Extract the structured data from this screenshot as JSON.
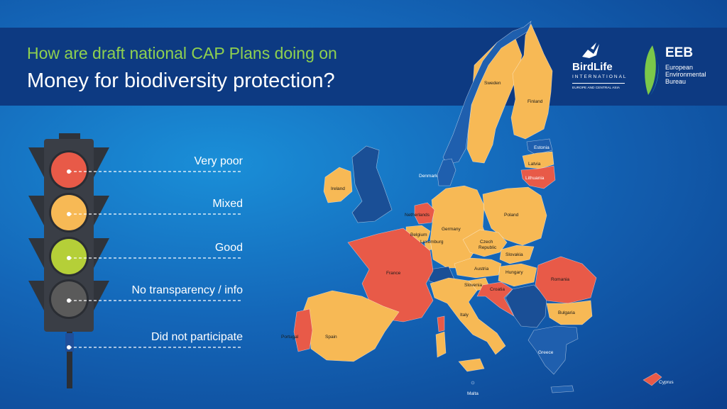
{
  "header": {
    "subtitle": "How are draft national CAP Plans doing on",
    "title": "Money for biodiversity protection?"
  },
  "logos": {
    "birdlife": {
      "name": "BirdLife",
      "international": "INTERNATIONAL",
      "tagline": "EUROPE AND CENTRAL ASIA"
    },
    "eeb": {
      "abbr": "EEB",
      "line1": "European",
      "line2": "Environmental",
      "line3": "Bureau"
    }
  },
  "legend": [
    {
      "label": "Very poor",
      "color": "#e85a48"
    },
    {
      "label": "Mixed",
      "color": "#f7b955"
    },
    {
      "label": "Good",
      "color": "#b5cf38"
    },
    {
      "label": "No transparency / info",
      "color": "#5a5a5a"
    },
    {
      "label": "Did not participate",
      "color": "#1f5fae"
    }
  ],
  "colors": {
    "very_poor": "#e85a48",
    "mixed": "#f7b955",
    "good": "#b5cf38",
    "no_info": "#5a5a5a",
    "not_participating": "#1f5fae"
  },
  "countries": {
    "sweden": {
      "name": "Sweden",
      "rating": "mixed"
    },
    "finland": {
      "name": "Finland",
      "rating": "mixed"
    },
    "estonia": {
      "name": "Estonia",
      "rating": "did not participate"
    },
    "latvia": {
      "name": "Latvia",
      "rating": "mixed"
    },
    "lithuania": {
      "name": "Lithuania",
      "rating": "very poor"
    },
    "denmark": {
      "name": "Denmark",
      "rating": "did not participate"
    },
    "ireland": {
      "name": "Ireland",
      "rating": "mixed"
    },
    "netherlands": {
      "name": "Netherlands",
      "rating": "very poor"
    },
    "belgium": {
      "name": "Belgium",
      "rating": "mixed"
    },
    "luxembourg": {
      "name": "Luxemburg",
      "rating": "mixed"
    },
    "germany": {
      "name": "Germany",
      "rating": "mixed"
    },
    "poland": {
      "name": "Poland",
      "rating": "mixed"
    },
    "czech": {
      "name": "Czech Republic",
      "line1": "Czech",
      "line2": "Republic",
      "rating": "mixed"
    },
    "slovakia": {
      "name": "Slovakia",
      "rating": "mixed"
    },
    "austria": {
      "name": "Austria",
      "rating": "mixed"
    },
    "hungary": {
      "name": "Hungary",
      "rating": "mixed"
    },
    "slovenia": {
      "name": "Slovenia",
      "rating": "mixed"
    },
    "croatia": {
      "name": "Croatia",
      "rating": "very poor"
    },
    "romania": {
      "name": "Romania",
      "rating": "very poor"
    },
    "bulgaria": {
      "name": "Bulgaria",
      "rating": "mixed"
    },
    "france": {
      "name": "France",
      "rating": "very poor"
    },
    "spain": {
      "name": "Spain",
      "rating": "mixed"
    },
    "portugal": {
      "name": "Portugal",
      "rating": "very poor"
    },
    "italy": {
      "name": "Italy",
      "rating": "mixed"
    },
    "malta": {
      "name": "Malta",
      "rating": "did not participate"
    },
    "greece": {
      "name": "Greece",
      "rating": "did not participate"
    },
    "cyprus": {
      "name": "Cyprus",
      "rating": "very poor"
    }
  }
}
